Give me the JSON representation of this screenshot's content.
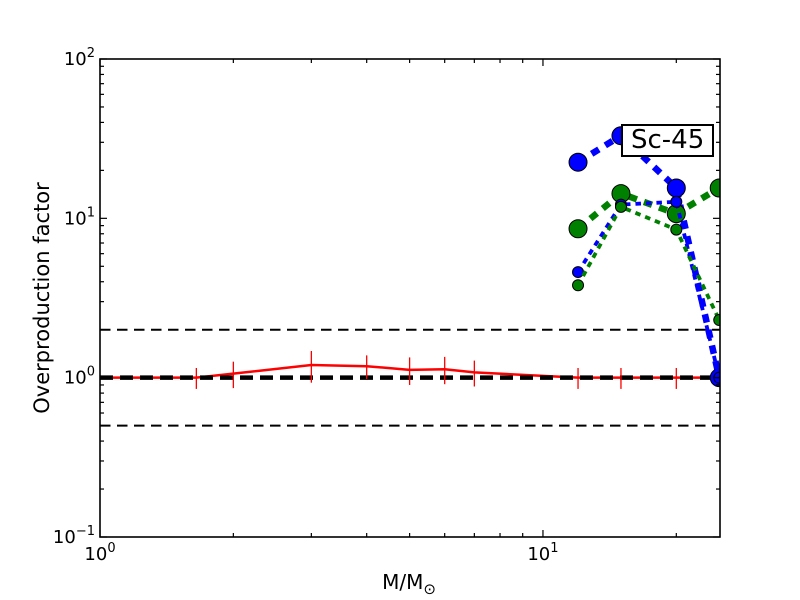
{
  "chart_data": {
    "type": "line",
    "title": "",
    "xlabel": "M/M",
    "xlabel_subscript": "⊙",
    "ylabel": "Overproduction factor",
    "xscale": "log",
    "yscale": "log",
    "xlim": [
      1,
      25.1
    ],
    "ylim": [
      0.1,
      100
    ],
    "grid": false,
    "annotation": {
      "text": "Sc-45"
    },
    "x_ticks": [
      {
        "value": 1,
        "base": "10",
        "exp": "0"
      },
      {
        "value": 10,
        "base": "10",
        "exp": "1"
      }
    ],
    "y_ticks": [
      {
        "value": 0.1,
        "base": "10",
        "exp": "−1"
      },
      {
        "value": 1,
        "base": "10",
        "exp": "0"
      },
      {
        "value": 10,
        "base": "10",
        "exp": "1"
      },
      {
        "value": 100,
        "base": "10",
        "exp": "2"
      }
    ],
    "colors": {
      "blue": "#0000ff",
      "green": "#008000",
      "red": "#ff0000",
      "black": "#000000"
    },
    "reference_lines": [
      {
        "y": 1.0,
        "style": "thick-dashed",
        "color": "black"
      },
      {
        "y": 2.0,
        "style": "thin-dashed",
        "color": "black"
      },
      {
        "y": 0.5,
        "style": "thin-dashed",
        "color": "black"
      }
    ],
    "series": [
      {
        "name": "low-mass-red-errorbar",
        "color": "red",
        "line": "solid",
        "marker": null,
        "x": [
          1.0,
          1.65,
          2.0,
          3.0,
          4.0,
          5.0,
          6.0,
          7.0,
          12.0,
          15.0,
          20.0,
          25.0
        ],
        "y": [
          1.0,
          1.0,
          1.06,
          1.2,
          1.18,
          1.12,
          1.13,
          1.08,
          1.0,
          1.0,
          1.0,
          1.0
        ],
        "yerr": [
          null,
          0.15,
          0.2,
          0.27,
          0.2,
          0.22,
          0.22,
          0.2,
          0.15,
          0.15,
          0.15,
          null
        ]
      },
      {
        "name": "massive-blue-thick",
        "color": "blue",
        "line": "dashed-thick",
        "marker": "circle-large",
        "x": [
          12,
          15,
          20,
          25
        ],
        "y": [
          22.5,
          33.0,
          15.5,
          1.0
        ],
        "yerr": null
      },
      {
        "name": "massive-green-thick",
        "color": "green",
        "line": "dashed-thick",
        "marker": "circle-large",
        "x": [
          12,
          15,
          20,
          25
        ],
        "y": [
          8.6,
          14.3,
          10.7,
          15.5
        ],
        "yerr": null
      },
      {
        "name": "massive-blue-thin",
        "color": "blue",
        "line": "dashed-thin",
        "marker": "circle-small",
        "x": [
          12,
          15,
          20,
          25
        ],
        "y": [
          4.6,
          12.2,
          12.7,
          1.0
        ],
        "yerr": null
      },
      {
        "name": "massive-green-thin",
        "color": "green",
        "line": "dashed-thin",
        "marker": "circle-small",
        "x": [
          12,
          15,
          20,
          25
        ],
        "y": [
          3.8,
          11.8,
          8.5,
          2.3
        ],
        "yerr": null
      }
    ]
  }
}
